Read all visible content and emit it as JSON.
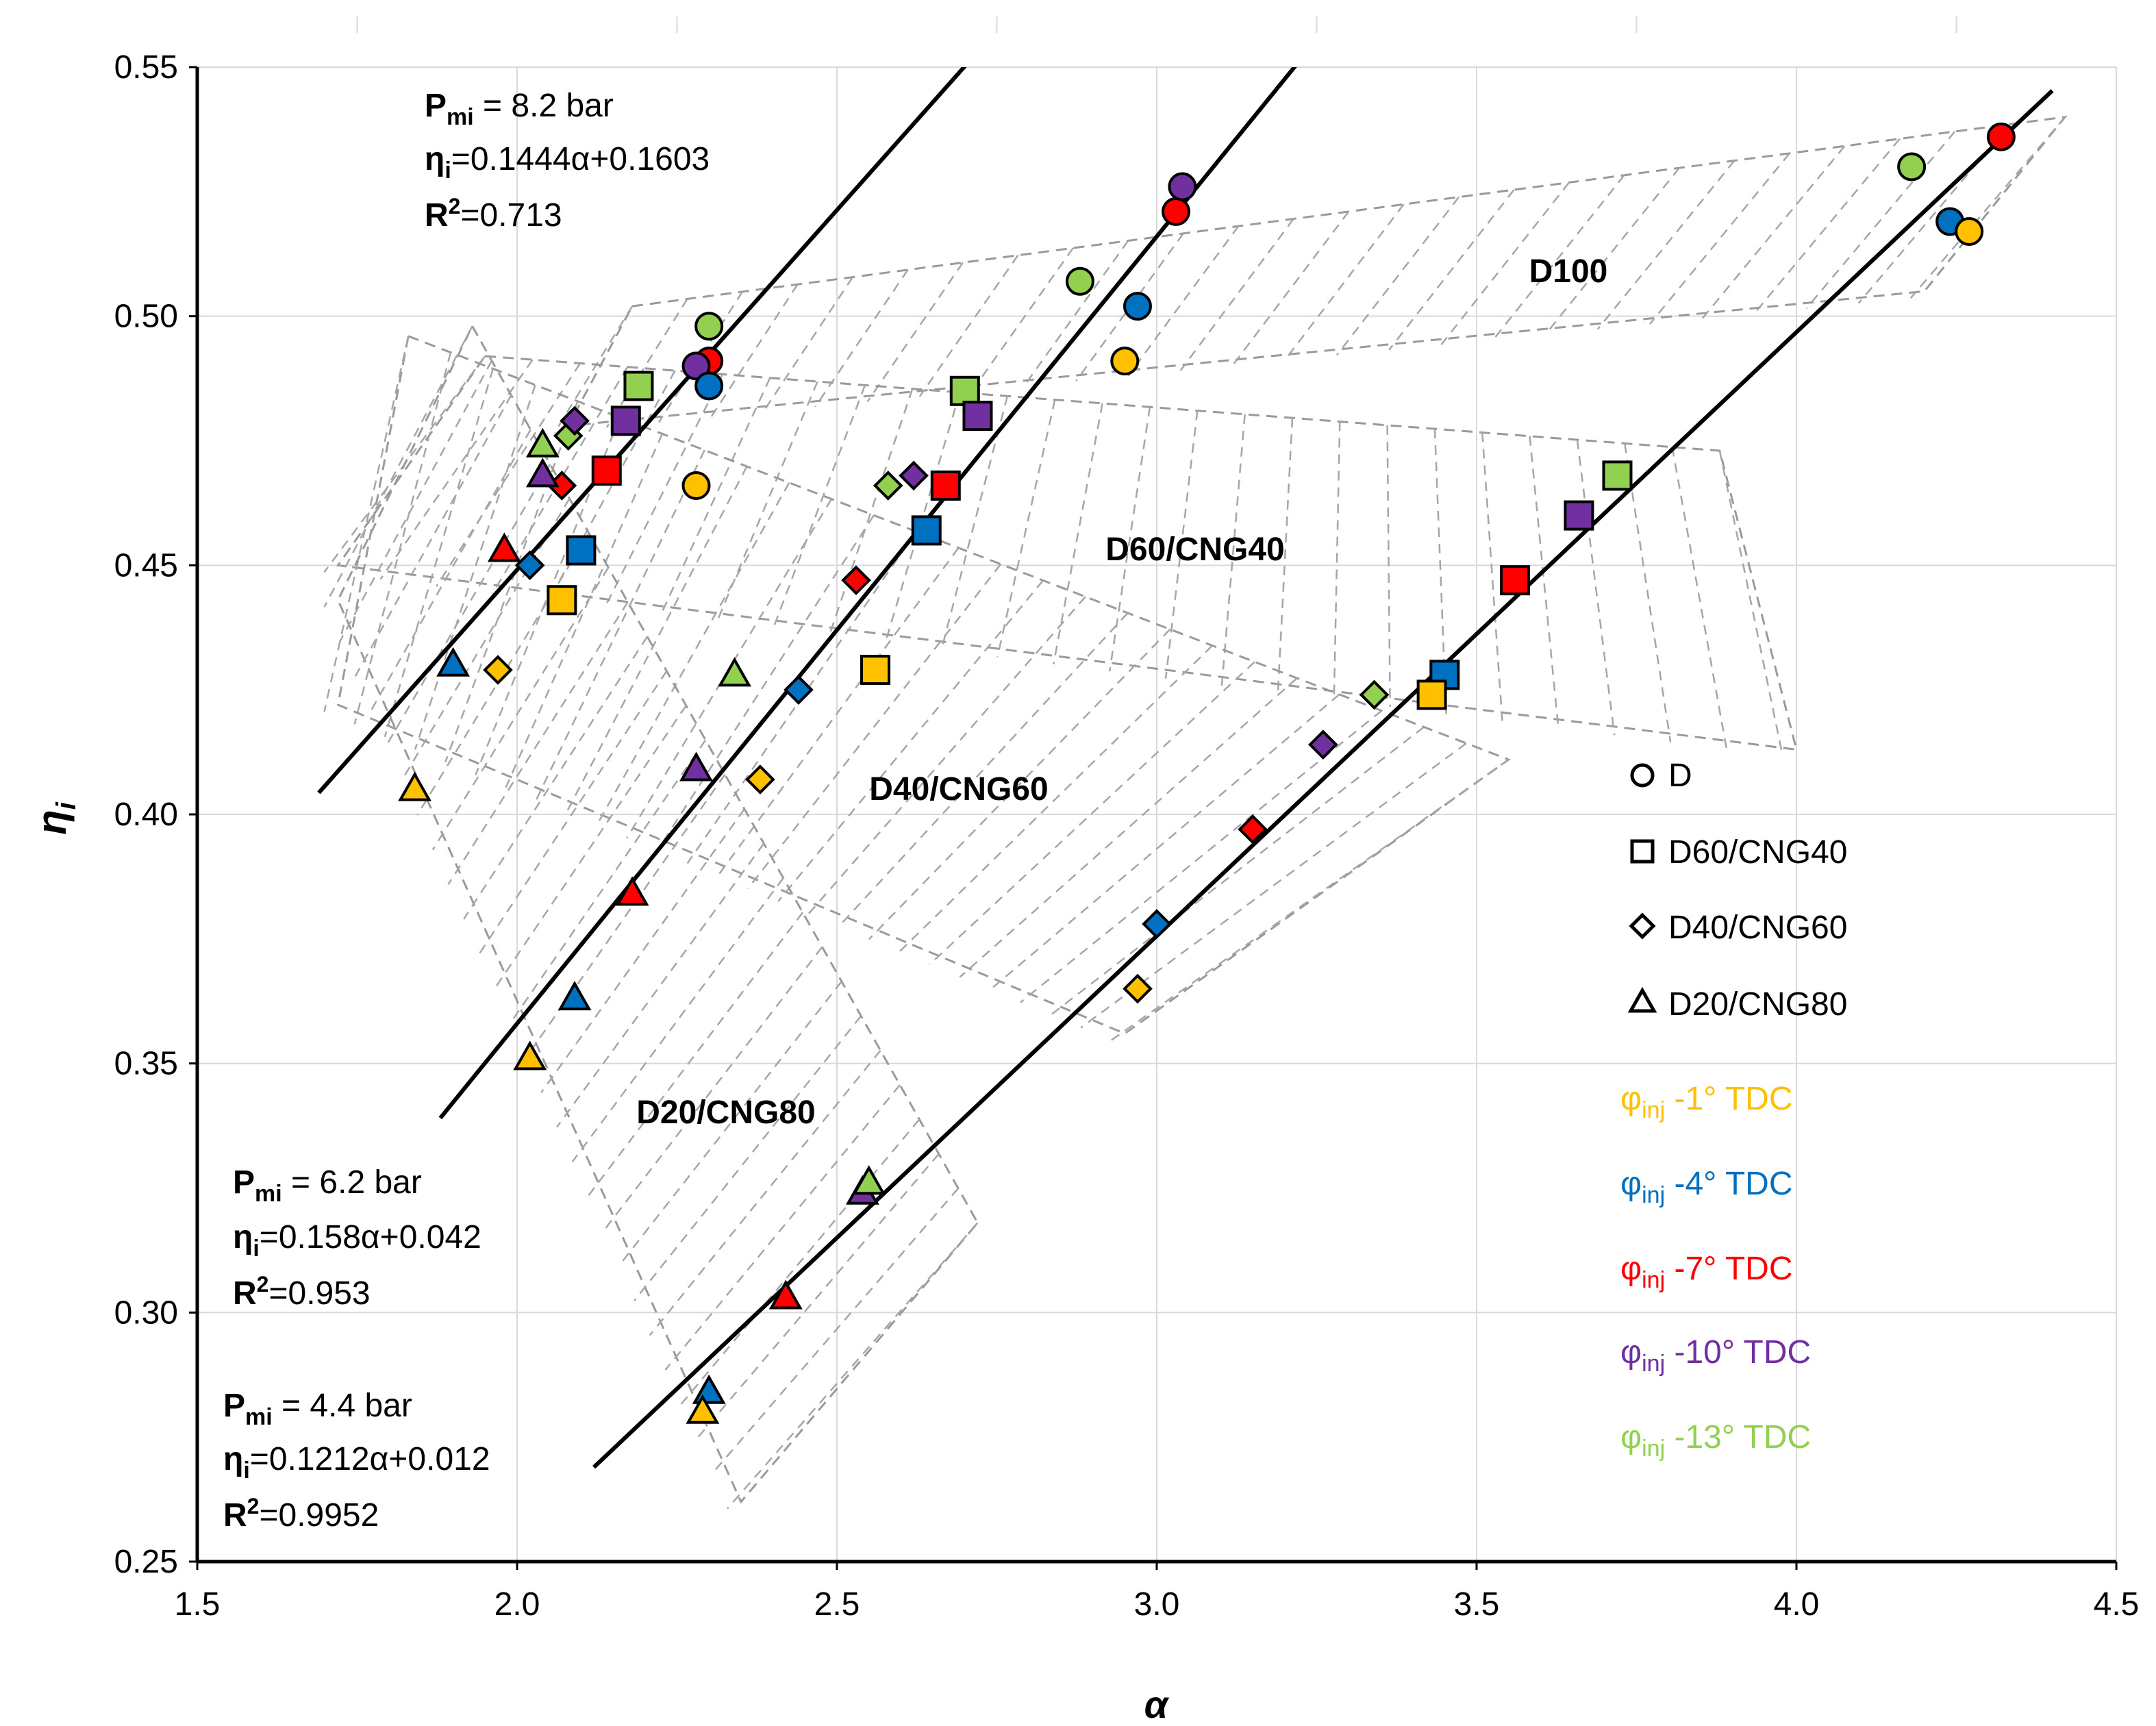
{
  "chart_data": {
    "type": "scatter",
    "xlabel": "α",
    "ylabel_main": "η",
    "ylabel_sub": "i",
    "xlim": [
      1.5,
      4.5
    ],
    "ylim": [
      0.25,
      0.55
    ],
    "x_ticks": [
      1.5,
      2.0,
      2.5,
      3.0,
      3.5,
      4.0,
      4.5
    ],
    "y_ticks": [
      0.25,
      0.3,
      0.35,
      0.4,
      0.45,
      0.5,
      0.55
    ],
    "x_tick_labels": [
      "1.5",
      "2.0",
      "2.5",
      "3.0",
      "3.5",
      "4.0",
      "4.5"
    ],
    "y_tick_labels": [
      "0.25",
      "0.30",
      "0.35",
      "0.40",
      "0.45",
      "0.50",
      "0.55"
    ],
    "grid": true,
    "colors": {
      "-1": "#FFC000",
      "-4": "#0070C0",
      "-7": "#FF0000",
      "-10": "#7030A0",
      "-13": "#92D050"
    },
    "fit_lines": [
      {
        "name": "Pmi 8.2 bar",
        "slope": 0.1444,
        "intercept": 0.1603,
        "x_range": [
          1.69,
          3.04
        ]
      },
      {
        "name": "Pmi 6.2 bar",
        "slope": 0.158,
        "intercept": 0.042,
        "x_range": [
          1.88,
          3.3
        ]
      },
      {
        "name": "Pmi 4.4 bar",
        "slope": 0.1212,
        "intercept": 0.012,
        "x_range": [
          2.12,
          4.4
        ]
      }
    ],
    "fit_annotations": [
      {
        "p_main": "P",
        "p_sub": "mi",
        "p_rest": " = 8.2 bar",
        "eq_main": "η",
        "eq_sub": "i",
        "eq_rest": "=0.1444α+0.1603",
        "r2": "R",
        "r2_sup": "2",
        "r2_rest": "=0.713"
      },
      {
        "p_main": "P",
        "p_sub": "mi",
        "p_rest": " = 6.2 bar",
        "eq_main": "η",
        "eq_sub": "i",
        "eq_rest": "=0.158α+0.042",
        "r2": "R",
        "r2_sup": "2",
        "r2_rest": "=0.953"
      },
      {
        "p_main": "P",
        "p_sub": "mi",
        "p_rest": " = 4.4 bar",
        "eq_main": "η",
        "eq_sub": "i",
        "eq_rest": "=0.1212α+0.012",
        "r2": "R",
        "r2_sup": "2",
        "r2_rest": "=0.9952"
      }
    ],
    "region_labels": [
      "D100",
      "D60/CNG40",
      "D40/CNG60",
      "D20/CNG80"
    ],
    "regions": [
      {
        "name": "D100",
        "polygon": [
          [
            2.18,
            0.502
          ],
          [
            4.42,
            0.54
          ],
          [
            4.2,
            0.505
          ],
          [
            2.08,
            0.478
          ]
        ]
      },
      {
        "name": "D60/CNG40",
        "polygon": [
          [
            1.95,
            0.492
          ],
          [
            3.88,
            0.473
          ],
          [
            4.0,
            0.413
          ],
          [
            1.72,
            0.45
          ]
        ]
      },
      {
        "name": "D40/CNG60",
        "polygon": [
          [
            1.83,
            0.496
          ],
          [
            3.55,
            0.411
          ],
          [
            2.95,
            0.356
          ],
          [
            1.72,
            0.422
          ]
        ]
      },
      {
        "name": "D20/CNG80",
        "polygon": [
          [
            1.93,
            0.498
          ],
          [
            2.72,
            0.318
          ],
          [
            2.35,
            0.262
          ],
          [
            1.72,
            0.443
          ]
        ]
      }
    ],
    "series_markers": [
      {
        "marker": "circle",
        "label": "D"
      },
      {
        "marker": "square",
        "label": "D60/CNG40"
      },
      {
        "marker": "diamond",
        "label": "D40/CNG60"
      },
      {
        "marker": "triangle",
        "label": "D20/CNG80"
      }
    ],
    "timing_legend": [
      {
        "sym": "φ",
        "sub": "inj",
        "rest": " -1° TDC",
        "color": "#FFC000"
      },
      {
        "sym": "φ",
        "sub": "inj",
        "rest": " -4° TDC",
        "color": "#0070C0"
      },
      {
        "sym": "φ",
        "sub": "inj",
        "rest": " -7° TDC",
        "color": "#FF0000"
      },
      {
        "sym": "φ",
        "sub": "inj",
        "rest": " -10° TDC",
        "color": "#7030A0"
      },
      {
        "sym": "φ",
        "sub": "inj",
        "rest": " -13° TDC",
        "color": "#92D050"
      }
    ],
    "points": [
      {
        "fuel": "D",
        "marker": "circle",
        "timing": "-13",
        "x": 2.3,
        "y": 0.498
      },
      {
        "fuel": "D",
        "marker": "circle",
        "timing": "-7",
        "x": 2.3,
        "y": 0.491
      },
      {
        "fuel": "D",
        "marker": "circle",
        "timing": "-10",
        "x": 2.28,
        "y": 0.49
      },
      {
        "fuel": "D",
        "marker": "circle",
        "timing": "-4",
        "x": 2.3,
        "y": 0.486
      },
      {
        "fuel": "D",
        "marker": "circle",
        "timing": "-1",
        "x": 2.28,
        "y": 0.466
      },
      {
        "fuel": "D",
        "marker": "circle",
        "timing": "-13",
        "x": 2.88,
        "y": 0.507
      },
      {
        "fuel": "D",
        "marker": "circle",
        "timing": "-4",
        "x": 2.97,
        "y": 0.502
      },
      {
        "fuel": "D",
        "marker": "circle",
        "timing": "-1",
        "x": 2.95,
        "y": 0.491
      },
      {
        "fuel": "D",
        "marker": "circle",
        "timing": "-7",
        "x": 3.03,
        "y": 0.521
      },
      {
        "fuel": "D",
        "marker": "circle",
        "timing": "-10",
        "x": 3.04,
        "y": 0.526
      },
      {
        "fuel": "D",
        "marker": "circle",
        "timing": "-13",
        "x": 4.18,
        "y": 0.53
      },
      {
        "fuel": "D",
        "marker": "circle",
        "timing": "-7",
        "x": 4.32,
        "y": 0.536
      },
      {
        "fuel": "D",
        "marker": "circle",
        "timing": "-4",
        "x": 4.24,
        "y": 0.519
      },
      {
        "fuel": "D",
        "marker": "circle",
        "timing": "-1",
        "x": 4.27,
        "y": 0.517
      },
      {
        "fuel": "D60/CNG40",
        "marker": "square",
        "timing": "-13",
        "x": 2.19,
        "y": 0.486
      },
      {
        "fuel": "D60/CNG40",
        "marker": "square",
        "timing": "-10",
        "x": 2.17,
        "y": 0.479
      },
      {
        "fuel": "D60/CNG40",
        "marker": "square",
        "timing": "-7",
        "x": 2.14,
        "y": 0.469
      },
      {
        "fuel": "D60/CNG40",
        "marker": "square",
        "timing": "-4",
        "x": 2.1,
        "y": 0.453
      },
      {
        "fuel": "D60/CNG40",
        "marker": "square",
        "timing": "-1",
        "x": 2.07,
        "y": 0.443
      },
      {
        "fuel": "D60/CNG40",
        "marker": "square",
        "timing": "-13",
        "x": 2.7,
        "y": 0.485
      },
      {
        "fuel": "D60/CNG40",
        "marker": "square",
        "timing": "-10",
        "x": 2.72,
        "y": 0.48
      },
      {
        "fuel": "D60/CNG40",
        "marker": "square",
        "timing": "-7",
        "x": 2.67,
        "y": 0.466
      },
      {
        "fuel": "D60/CNG40",
        "marker": "square",
        "timing": "-4",
        "x": 2.64,
        "y": 0.457
      },
      {
        "fuel": "D60/CNG40",
        "marker": "square",
        "timing": "-1",
        "x": 2.56,
        "y": 0.429
      },
      {
        "fuel": "D60/CNG40",
        "marker": "square",
        "timing": "-13",
        "x": 3.72,
        "y": 0.468
      },
      {
        "fuel": "D60/CNG40",
        "marker": "square",
        "timing": "-10",
        "x": 3.66,
        "y": 0.46
      },
      {
        "fuel": "D60/CNG40",
        "marker": "square",
        "timing": "-7",
        "x": 3.56,
        "y": 0.447
      },
      {
        "fuel": "D60/CNG40",
        "marker": "square",
        "timing": "-4",
        "x": 3.45,
        "y": 0.428
      },
      {
        "fuel": "D60/CNG40",
        "marker": "square",
        "timing": "-1",
        "x": 3.43,
        "y": 0.424
      },
      {
        "fuel": "D40/CNG60",
        "marker": "diamond",
        "timing": "-13",
        "x": 2.08,
        "y": 0.476
      },
      {
        "fuel": "D40/CNG60",
        "marker": "diamond",
        "timing": "-10",
        "x": 2.09,
        "y": 0.479
      },
      {
        "fuel": "D40/CNG60",
        "marker": "diamond",
        "timing": "-7",
        "x": 2.07,
        "y": 0.466
      },
      {
        "fuel": "D40/CNG60",
        "marker": "diamond",
        "timing": "-4",
        "x": 2.02,
        "y": 0.45
      },
      {
        "fuel": "D40/CNG60",
        "marker": "diamond",
        "timing": "-1",
        "x": 1.97,
        "y": 0.429
      },
      {
        "fuel": "D40/CNG60",
        "marker": "diamond",
        "timing": "-13",
        "x": 2.58,
        "y": 0.466
      },
      {
        "fuel": "D40/CNG60",
        "marker": "diamond",
        "timing": "-10",
        "x": 2.62,
        "y": 0.468
      },
      {
        "fuel": "D40/CNG60",
        "marker": "diamond",
        "timing": "-7",
        "x": 2.53,
        "y": 0.447
      },
      {
        "fuel": "D40/CNG60",
        "marker": "diamond",
        "timing": "-4",
        "x": 2.44,
        "y": 0.425
      },
      {
        "fuel": "D40/CNG60",
        "marker": "diamond",
        "timing": "-1",
        "x": 2.38,
        "y": 0.407
      },
      {
        "fuel": "D40/CNG60",
        "marker": "diamond",
        "timing": "-13",
        "x": 3.34,
        "y": 0.424
      },
      {
        "fuel": "D40/CNG60",
        "marker": "diamond",
        "timing": "-10",
        "x": 3.26,
        "y": 0.414
      },
      {
        "fuel": "D40/CNG60",
        "marker": "diamond",
        "timing": "-7",
        "x": 3.15,
        "y": 0.397
      },
      {
        "fuel": "D40/CNG60",
        "marker": "diamond",
        "timing": "-4",
        "x": 3.0,
        "y": 0.378
      },
      {
        "fuel": "D40/CNG60",
        "marker": "diamond",
        "timing": "-1",
        "x": 2.97,
        "y": 0.365
      },
      {
        "fuel": "D20/CNG80",
        "marker": "triangle",
        "timing": "-13",
        "x": 2.04,
        "y": 0.474
      },
      {
        "fuel": "D20/CNG80",
        "marker": "triangle",
        "timing": "-10",
        "x": 2.04,
        "y": 0.468
      },
      {
        "fuel": "D20/CNG80",
        "marker": "triangle",
        "timing": "-7",
        "x": 1.98,
        "y": 0.453
      },
      {
        "fuel": "D20/CNG80",
        "marker": "triangle",
        "timing": "-4",
        "x": 1.9,
        "y": 0.43
      },
      {
        "fuel": "D20/CNG80",
        "marker": "triangle",
        "timing": "-1",
        "x": 1.84,
        "y": 0.405
      },
      {
        "fuel": "D20/CNG80",
        "marker": "triangle",
        "timing": "-13",
        "x": 2.34,
        "y": 0.428
      },
      {
        "fuel": "D20/CNG80",
        "marker": "triangle",
        "timing": "-10",
        "x": 2.28,
        "y": 0.409
      },
      {
        "fuel": "D20/CNG80",
        "marker": "triangle",
        "timing": "-7",
        "x": 2.18,
        "y": 0.384
      },
      {
        "fuel": "D20/CNG80",
        "marker": "triangle",
        "timing": "-4",
        "x": 2.09,
        "y": 0.363
      },
      {
        "fuel": "D20/CNG80",
        "marker": "triangle",
        "timing": "-1",
        "x": 2.02,
        "y": 0.351
      },
      {
        "fuel": "D20/CNG80",
        "marker": "triangle",
        "timing": "-10",
        "x": 2.54,
        "y": 0.324
      },
      {
        "fuel": "D20/CNG80",
        "marker": "triangle",
        "timing": "-13",
        "x": 2.55,
        "y": 0.326
      },
      {
        "fuel": "D20/CNG80",
        "marker": "triangle",
        "timing": "-7",
        "x": 2.42,
        "y": 0.303
      },
      {
        "fuel": "D20/CNG80",
        "marker": "triangle",
        "timing": "-4",
        "x": 2.3,
        "y": 0.284
      },
      {
        "fuel": "D20/CNG80",
        "marker": "triangle",
        "timing": "-1",
        "x": 2.29,
        "y": 0.28
      }
    ]
  }
}
